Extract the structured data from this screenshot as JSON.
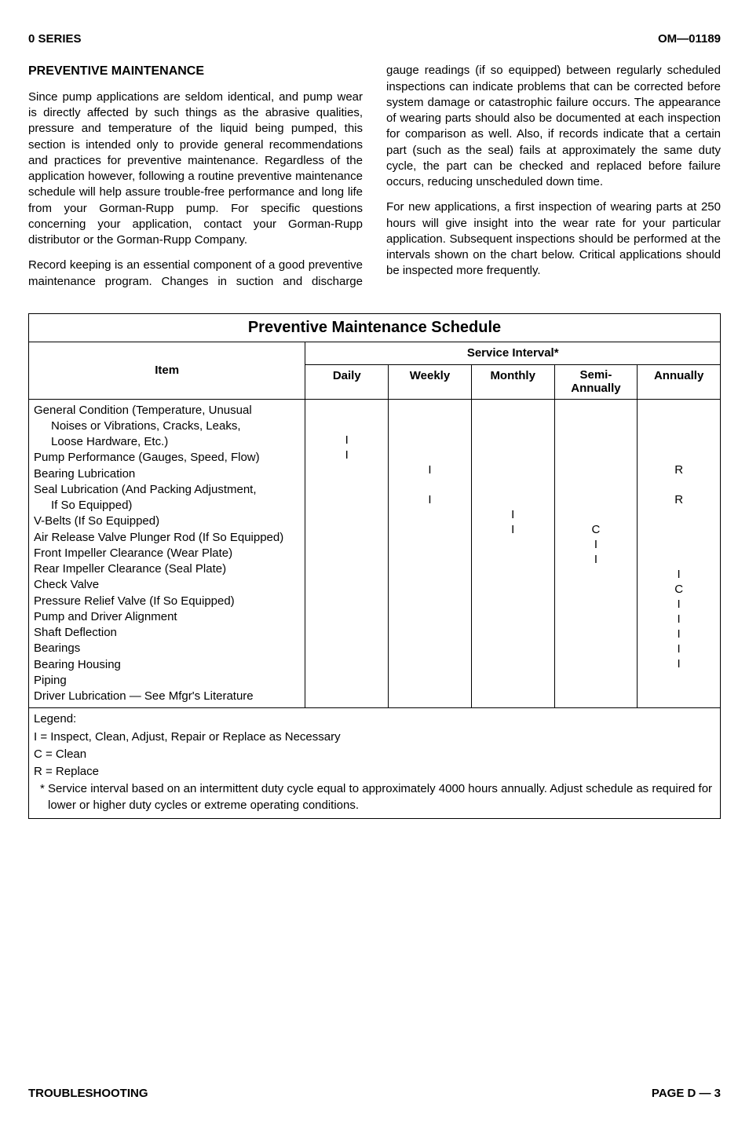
{
  "header": {
    "left": "0 SERIES",
    "right": "OM—01189"
  },
  "section_title": "PREVENTIVE MAINTENANCE",
  "body": {
    "p1": "Since pump applications are seldom identical, and pump wear is directly affected by such things as the abrasive qualities, pressure and temperature of the liquid being pumped, this section is intended only to provide general recommendations and practices for preventive maintenance. Regardless of the application however, following a routine preventive maintenance schedule will help assure trouble-free performance and long life from your Gorman-Rupp pump. For specific questions concerning your application, contact your Gorman-Rupp distributor or the Gorman-Rupp Company.",
    "p2": "Record keeping is an essential component of a good preventive maintenance program. Changes in suction and discharge gauge readings (if so equipped) between regularly scheduled inspections can indicate problems that can be corrected before system damage or catastrophic failure occurs. The appearance of wearing parts should also be documented at each inspection for comparison as well. Also, if records indicate that a certain part (such as the seal) fails at approximately the same duty cycle, the part can be checked and replaced before failure occurs, reducing unscheduled down time.",
    "p3": "For new applications, a first inspection of wearing parts at 250 hours will give insight into the wear rate for your particular application. Subsequent inspections should be performed at the intervals shown on the chart below. Critical applications should be inspected more frequently."
  },
  "table": {
    "title": "Preventive Maintenance Schedule",
    "item_header": "Item",
    "interval_header": "Service Interval*",
    "cols": [
      "Daily",
      "Weekly",
      "Monthly",
      "Semi-Annually",
      "Annually"
    ],
    "rows": [
      {
        "item": "General Condition (Temperature, Unusual",
        "wrap1": "Noises or Vibrations, Cracks, Leaks,",
        "wrap2": "Loose Hardware, Etc.)",
        "marks": [
          "I",
          "",
          "",
          "",
          ""
        ]
      },
      {
        "item": "Pump Performance (Gauges, Speed, Flow)",
        "marks": [
          "I",
          "",
          "",
          "",
          ""
        ]
      },
      {
        "item": "Bearing Lubrication",
        "marks": [
          "",
          "I",
          "",
          "",
          "R"
        ]
      },
      {
        "item": "Seal Lubrication (And Packing Adjustment,",
        "wrap1": "If So Equipped)",
        "marks": [
          "",
          "I",
          "",
          "",
          "R"
        ]
      },
      {
        "item": "V-Belts (If So Equipped)",
        "marks": [
          "",
          "",
          "I",
          "",
          ""
        ]
      },
      {
        "item": "Air Release Valve Plunger Rod (If So Equipped)",
        "marks": [
          "",
          "",
          "I",
          "C",
          ""
        ]
      },
      {
        "item": "Front Impeller Clearance (Wear Plate)",
        "marks": [
          "",
          "",
          "",
          "I",
          ""
        ]
      },
      {
        "item": "Rear Impeller Clearance (Seal Plate)",
        "marks": [
          "",
          "",
          "",
          "I",
          ""
        ]
      },
      {
        "item": "Check Valve",
        "marks": [
          "",
          "",
          "",
          "",
          "I"
        ]
      },
      {
        "item": "Pressure Relief Valve (If So Equipped)",
        "marks": [
          "",
          "",
          "",
          "",
          "C"
        ]
      },
      {
        "item": "Pump and Driver Alignment",
        "marks": [
          "",
          "",
          "",
          "",
          "I"
        ]
      },
      {
        "item": "Shaft Deflection",
        "marks": [
          "",
          "",
          "",
          "",
          "I"
        ]
      },
      {
        "item": "Bearings",
        "marks": [
          "",
          "",
          "",
          "",
          "I"
        ]
      },
      {
        "item": "Bearing Housing",
        "marks": [
          "",
          "",
          "",
          "",
          "I"
        ]
      },
      {
        "item": "Piping",
        "marks": [
          "",
          "",
          "",
          "",
          "I"
        ]
      },
      {
        "item": "Driver Lubrication — See Mfgr's Literature",
        "marks": [
          "",
          "",
          "",
          "",
          ""
        ]
      }
    ],
    "legend": {
      "title": "Legend:",
      "l1": "I  =  Inspect, Clean, Adjust, Repair or Replace as Necessary",
      "l2": "C =  Clean",
      "l3": "R =  Replace",
      "note": "*  Service interval based on an intermittent duty cycle equal to approximately 4000 hours annually. Adjust schedule as required for lower or higher duty cycles or extreme operating conditions."
    }
  },
  "footer": {
    "left": "TROUBLESHOOTING",
    "right": "PAGE D — 3"
  }
}
